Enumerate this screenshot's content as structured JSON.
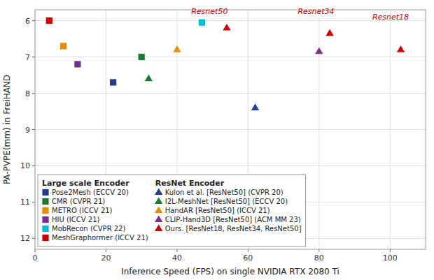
{
  "chart_data": {
    "type": "scatter",
    "xlabel": "Inference Speed (FPS) on single NVIDIA RTX 2080 Ti",
    "ylabel": "PA-PVPE(mm) in FreiHAND",
    "xlim": [
      0,
      110
    ],
    "ylim": [
      12.3,
      5.7
    ],
    "xticks": [
      0,
      20,
      40,
      60,
      80,
      100
    ],
    "yticks": [
      6,
      7,
      8,
      9,
      10,
      11,
      12
    ],
    "grid": true,
    "legend": "lower left",
    "groups": [
      {
        "name": "Large scale Encoder",
        "series": [
          {
            "name": "Pose2Mesh (ECCV 20)",
            "color": "#1f4096",
            "marker": "square",
            "x": [
              22
            ],
            "values": [
              7.7
            ]
          },
          {
            "name": "CMR (CVPR 21)",
            "color": "#1a7a2e",
            "marker": "square",
            "x": [
              30
            ],
            "values": [
              7.0
            ]
          },
          {
            "name": "METRO (ICCV 21)",
            "color": "#e88c00",
            "marker": "square",
            "x": [
              8
            ],
            "values": [
              6.7
            ]
          },
          {
            "name": "HIU (ICCV 21)",
            "color": "#7b2d8b",
            "marker": "square",
            "x": [
              12
            ],
            "values": [
              7.2
            ]
          },
          {
            "name": "MobRecon (CVPR 22)",
            "color": "#00bcd4",
            "marker": "square",
            "x": [
              47
            ],
            "values": [
              6.05
            ]
          },
          {
            "name": "MeshGraphormer (ICCV 21)",
            "color": "#cc0000",
            "marker": "square",
            "x": [
              4
            ],
            "values": [
              6.0
            ]
          }
        ]
      },
      {
        "name": "ResNet Encoder",
        "series": [
          {
            "name": "Kulon et al. [ResNet50] (CVPR 20)",
            "color": "#1f4096",
            "marker": "triangle",
            "x": [
              62
            ],
            "values": [
              8.4
            ]
          },
          {
            "name": "I2L-MeshNet [ResNet50] (ECCV 20)",
            "color": "#1a7a2e",
            "marker": "triangle",
            "x": [
              32
            ],
            "values": [
              7.6
            ]
          },
          {
            "name": "HandAR [ResNet50] (ICCV 21)",
            "color": "#e88c00",
            "marker": "triangle",
            "x": [
              40
            ],
            "values": [
              6.8
            ]
          },
          {
            "name": "CLIP-Hand3D [ResNet50] (ACM MM 23)",
            "color": "#7b2d8b",
            "marker": "triangle",
            "x": [
              80
            ],
            "values": [
              6.85
            ]
          },
          {
            "name": "Ours. [ResNet18, ResNet34, ResNet50]",
            "color": "#cc0000",
            "marker": "triangle",
            "x": [
              54,
              83,
              103
            ],
            "values": [
              6.2,
              6.35,
              6.8
            ]
          }
        ]
      }
    ],
    "annotations": [
      {
        "text": "Resnet50",
        "x": 44,
        "y": 5.85,
        "color": "#cc0000"
      },
      {
        "text": "Resnet34",
        "x": 74,
        "y": 5.85,
        "color": "#cc0000"
      },
      {
        "text": "Resnet18",
        "x": 95,
        "y": 6.0,
        "color": "#cc0000"
      }
    ]
  }
}
